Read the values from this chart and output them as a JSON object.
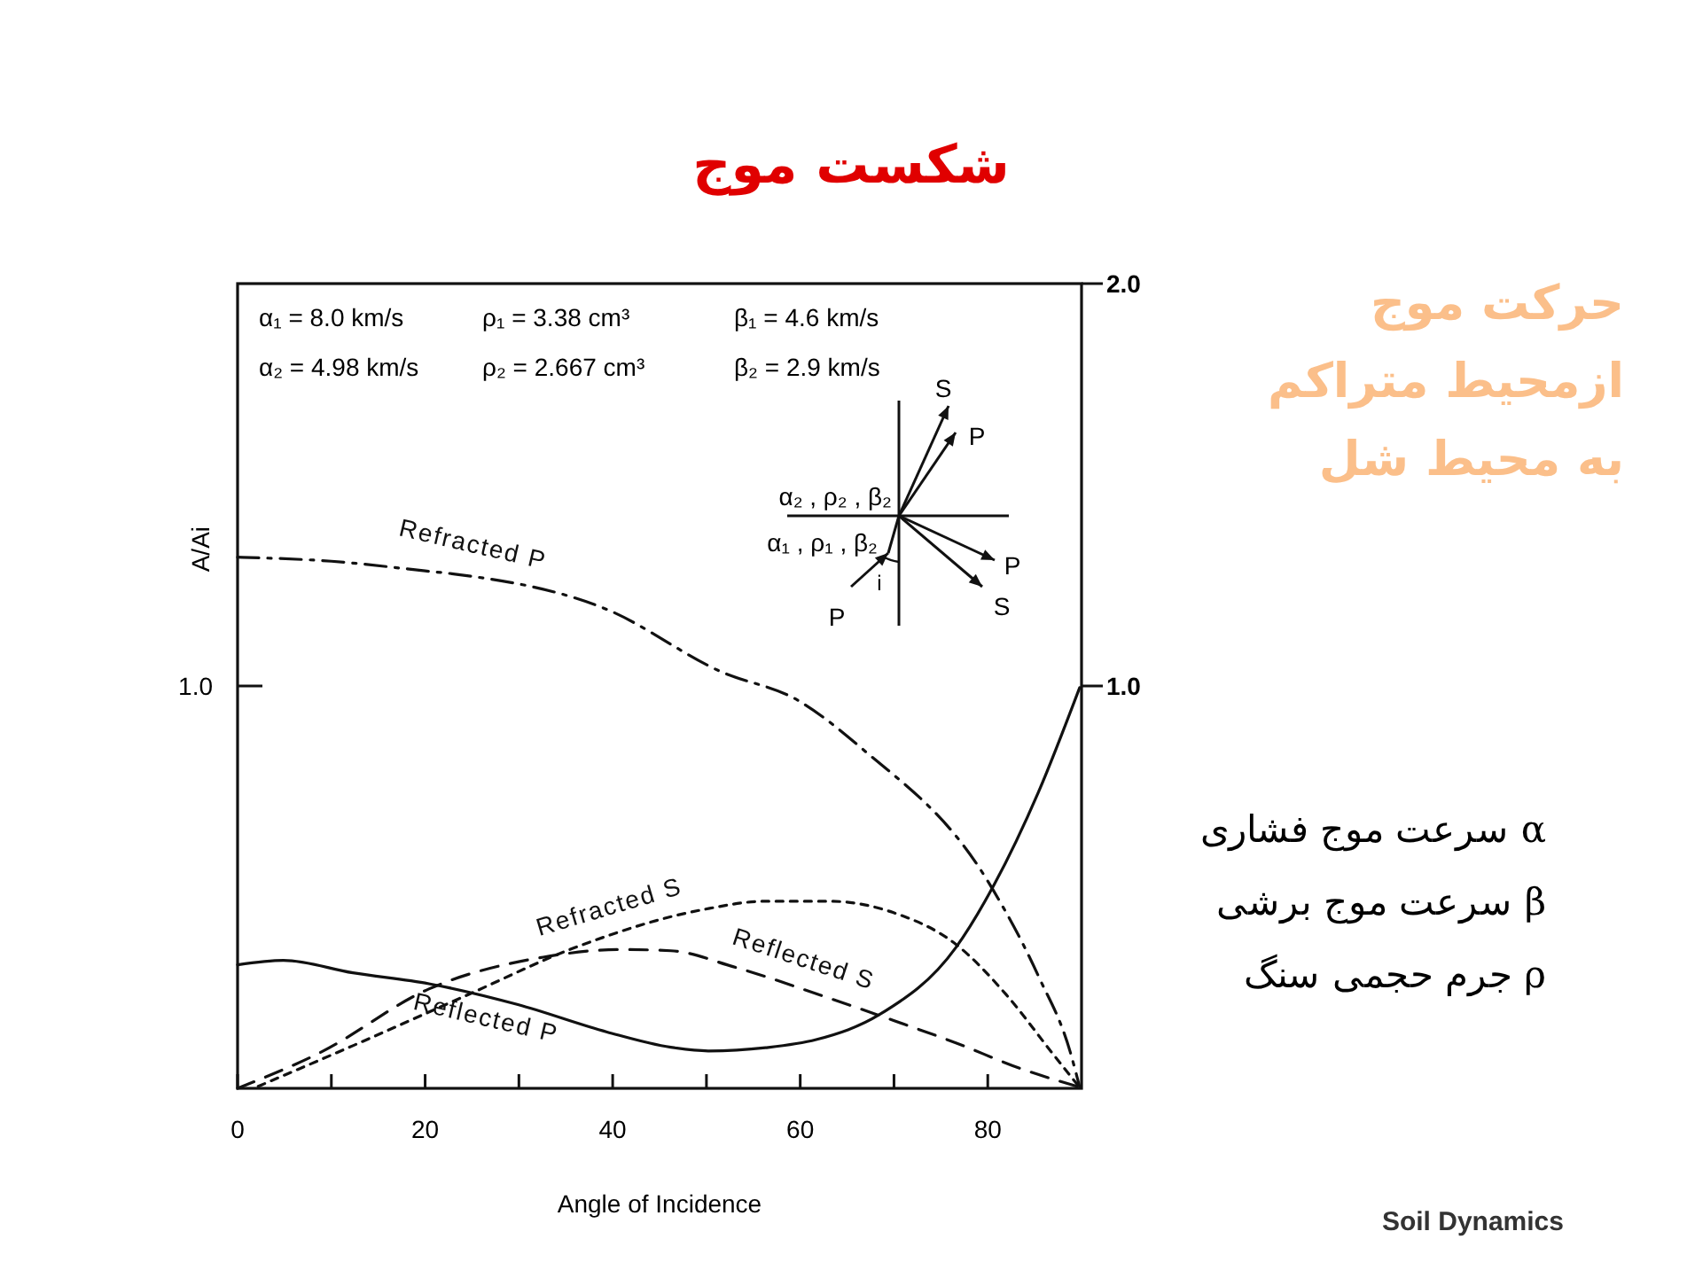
{
  "chart_data": {
    "type": "line",
    "title": "شکست موج",
    "xlabel": "Angle of Incidence",
    "ylabel": "A/Ai",
    "xlim": [
      0,
      90
    ],
    "xticks": [
      0,
      {
        "value": 10,
        "label": null
      },
      20,
      {
        "value": 30,
        "label": null
      },
      40,
      {
        "value": 50,
        "label": null
      },
      60,
      {
        "value": 70,
        "label": null
      },
      80
    ],
    "y2lim": [
      0,
      2
    ],
    "y2ticks": [
      {
        "value": 1,
        "label": "1.0"
      },
      {
        "value": 2,
        "label": "2.0"
      }
    ],
    "series": [
      {
        "name": "Refracted P",
        "color": "#111111",
        "line_style": "dashdot",
        "axis": "y2",
        "x": [
          0,
          10,
          20,
          23.2,
          39.4,
          51.6,
          59.7,
          66.5,
          80,
          85.4,
          88.8,
          89.8
        ],
        "values": [
          1.32,
          1.31,
          1.286,
          1.278,
          1.19,
          1.035,
          0.965,
          0.846,
          0.515,
          0.279,
          0.09,
          0.003
        ]
      },
      {
        "name": "Refracted S",
        "color": "#111111",
        "line_style": "dotted",
        "axis": "y2",
        "x": [
          2.2,
          12.3,
          24.5,
          36,
          49.6,
          56.3,
          63.1,
          69.9,
          76.6,
          82,
          86.8,
          89.6
        ],
        "values": [
          0.005,
          0.106,
          0.232,
          0.35,
          0.444,
          0.465,
          0.465,
          0.437,
          0.358,
          0.232,
          0.09,
          0.008
        ]
      },
      {
        "name": "Reflected S",
        "color": "#111111",
        "line_style": "dashed",
        "axis": "y2",
        "x": [
          0,
          8.9,
          20.4,
          32.6,
          40.8,
          46.2,
          52.9,
          63.1,
          69.9,
          76.6,
          83.4,
          89.8
        ],
        "values": [
          0,
          0.09,
          0.247,
          0.326,
          0.345,
          0.342,
          0.302,
          0.224,
          0.169,
          0.113,
          0.05,
          0.003
        ]
      },
      {
        "name": "Reflected P",
        "color": "#111111",
        "line_style": "solid",
        "axis": "y2",
        "x": [
          0,
          4.9,
          12.3,
          20.4,
          29.9,
          39.4,
          46.2,
          50.2,
          56.3,
          61.7,
          68.5,
          76.6,
          80.7,
          85.4,
          89.8
        ],
        "values": [
          0.307,
          0.318,
          0.287,
          0.26,
          0.208,
          0.14,
          0.102,
          0.093,
          0.101,
          0.121,
          0.184,
          0.35,
          0.507,
          0.736,
          0.996
        ]
      }
    ],
    "annotations": [
      "α₁ = 8.0  km/s",
      "α₂ = 4.98  km/s",
      "ρ₁ = 3.38  cm³",
      "ρ₂ = 2.667 cm³",
      "β₁ = 4.6  km/s",
      "β₂ = 2.9  km/s",
      "S",
      "P",
      "α₂ , ρ₂ , β₂",
      "α₁ , ρ₁ , β₂",
      "P",
      "S",
      "P",
      "i",
      "حرکت موج",
      "ازمحیط متراکم",
      "به محیط شل",
      "α سرعت موج  فشاری",
      "β سرعت موج  برشی",
      "ρ جرم حجمی سنگ",
      "Soil Dynamics",
      "1.0"
    ]
  }
}
